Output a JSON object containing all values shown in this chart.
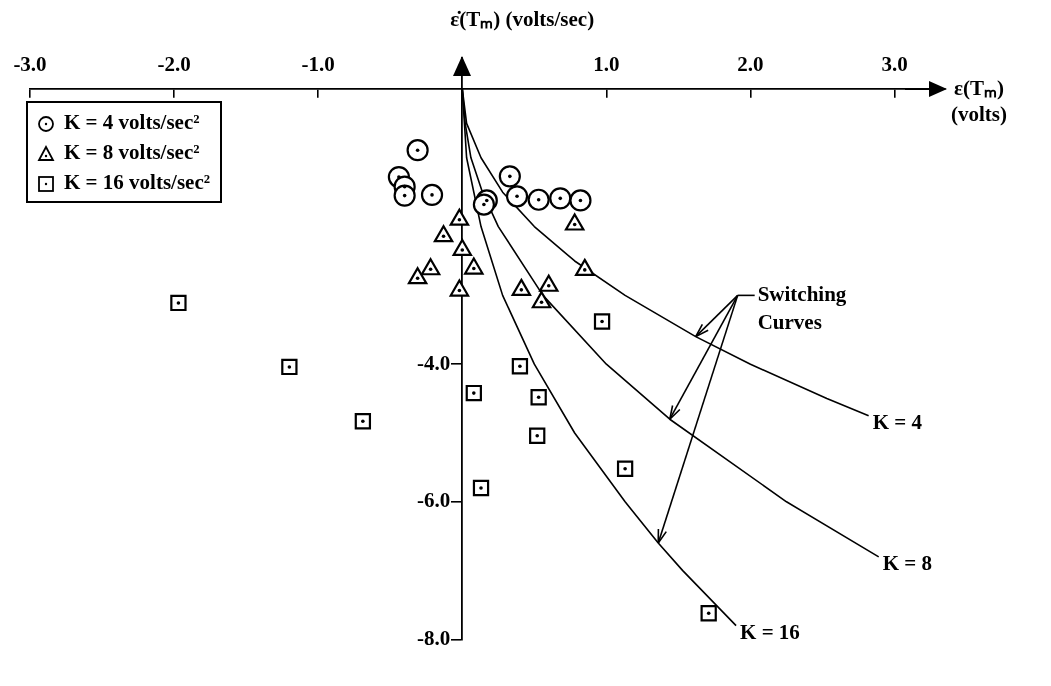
{
  "chart_data": {
    "type": "scatter",
    "xlabel": "ε(Tₘ) (volts)",
    "ylabel": "ε̇(Tₘ) (volts/sec)",
    "annotations": [
      {
        "text": "Switching Curves",
        "x": 1.44,
        "y": -4.8
      }
    ],
    "xlim": [
      -3,
      3.35
    ],
    "xticks": [
      {
        "value": -3,
        "label": "-3.0"
      },
      {
        "value": -2,
        "label": "-2.0"
      },
      {
        "value": -1,
        "label": "-1.0"
      },
      {
        "value": 1,
        "label": "1.0"
      },
      {
        "value": 2,
        "label": "2.0"
      },
      {
        "value": 3,
        "label": "3.0"
      }
    ],
    "ylim": [
      -8,
      0.45
    ],
    "yticks": [
      {
        "value": -4,
        "label": "-4.0"
      },
      {
        "value": -6,
        "label": "-6.0"
      },
      {
        "value": -8,
        "label": "-8.0"
      }
    ],
    "grid": false,
    "legend": "top left",
    "series": [
      {
        "name": "K = 4 volts/sec²",
        "color": "#000000",
        "marker": "circle",
        "x": [
          -0.31,
          -0.44,
          -0.4,
          -0.4,
          -0.21,
          0.17,
          0.15,
          0.33,
          0.38,
          0.53,
          0.68,
          0.82
        ],
        "values": [
          -0.89,
          -1.28,
          -1.42,
          -1.55,
          -1.54,
          -1.62,
          -1.68,
          -1.27,
          -1.56,
          -1.61,
          -1.59,
          -1.62
        ]
      },
      {
        "name": "K = 8 volts/sec²",
        "color": "#000000",
        "marker": "triangle",
        "x": [
          -0.02,
          -0.13,
          0.0,
          0.08,
          -0.22,
          -0.31,
          -0.02,
          0.41,
          0.6,
          0.55,
          0.85,
          0.78
        ],
        "values": [
          -1.9,
          -2.14,
          -2.34,
          -2.61,
          -2.62,
          -2.75,
          -2.93,
          -2.92,
          -2.86,
          -3.1,
          -2.63,
          -1.97
        ]
      },
      {
        "name": "K = 16 volts/sec²",
        "color": "#000000",
        "marker": "square",
        "x": [
          -1.97,
          -1.2,
          -0.69,
          0.08,
          0.13,
          0.4,
          0.53,
          0.52,
          0.97,
          1.13,
          1.71
        ],
        "values": [
          -3.11,
          -4.04,
          -4.83,
          -4.42,
          -5.8,
          -4.03,
          -4.48,
          -5.04,
          -3.38,
          -5.52,
          -7.62
        ]
      },
      {
        "name": "K = 4",
        "type": "line",
        "color": "#000000",
        "marker": "none",
        "x": [
          0,
          0.03,
          0.13,
          0.28,
          0.5,
          0.78,
          1.13,
          1.62,
          2.0,
          2.53,
          2.82
        ],
        "values": [
          0,
          -0.5,
          -1,
          -1.5,
          -2,
          -2.5,
          -3,
          -3.6,
          -4,
          -4.5,
          -4.75
        ]
      },
      {
        "name": "K = 8",
        "type": "line",
        "color": "#000000",
        "marker": "none",
        "x": [
          0,
          0.02,
          0.06,
          0.14,
          0.25,
          0.56,
          1.0,
          1.44,
          2.25,
          2.89
        ],
        "values": [
          0,
          -0.5,
          -1,
          -1.5,
          -2,
          -3,
          -4,
          -4.8,
          -6,
          -6.8
        ]
      },
      {
        "name": "K = 16",
        "type": "line",
        "color": "#000000",
        "marker": "none",
        "x": [
          0,
          0.03,
          0.13,
          0.28,
          0.5,
          0.78,
          1.13,
          1.36,
          1.53,
          1.9
        ],
        "values": [
          0,
          -1,
          -2,
          -3,
          -4,
          -5,
          -6,
          -6.6,
          -7,
          -7.8
        ]
      }
    ]
  }
}
